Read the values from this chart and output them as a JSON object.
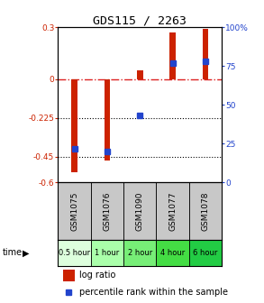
{
  "title": "GDS115 / 2263",
  "samples": [
    "GSM1075",
    "GSM1076",
    "GSM1090",
    "GSM1077",
    "GSM1078"
  ],
  "time_labels": [
    "0.5 hour",
    "1 hour",
    "2 hour",
    "4 hour",
    "6 hour"
  ],
  "log_ratios": [
    -0.54,
    -0.47,
    0.05,
    0.27,
    0.29
  ],
  "percentile_ranks": [
    22,
    20,
    43,
    77,
    78
  ],
  "bar_color": "#cc2200",
  "dot_color": "#2244cc",
  "ylim_left": [
    -0.6,
    0.3
  ],
  "ylim_right": [
    0,
    100
  ],
  "yticks_left": [
    0.3,
    0.0,
    -0.225,
    -0.45,
    -0.6
  ],
  "ytick_labels_left": [
    "0.3",
    "0",
    "-0.225",
    "-0.45",
    "-0.6"
  ],
  "yticks_right": [
    100,
    75,
    50,
    25,
    0
  ],
  "ytick_labels_right": [
    "100%",
    "75",
    "50",
    "25",
    "0"
  ],
  "hline_zero_color": "#dd2222",
  "hline_225_color": "#000000",
  "hline_45_color": "#000000",
  "legend_log_ratio": "log ratio",
  "legend_percentile": "percentile rank within the sample",
  "time_row_label": "time",
  "time_colors": [
    "#ddffdd",
    "#aaffaa",
    "#77ee77",
    "#44dd44",
    "#22cc44"
  ],
  "bar_width": 0.18
}
